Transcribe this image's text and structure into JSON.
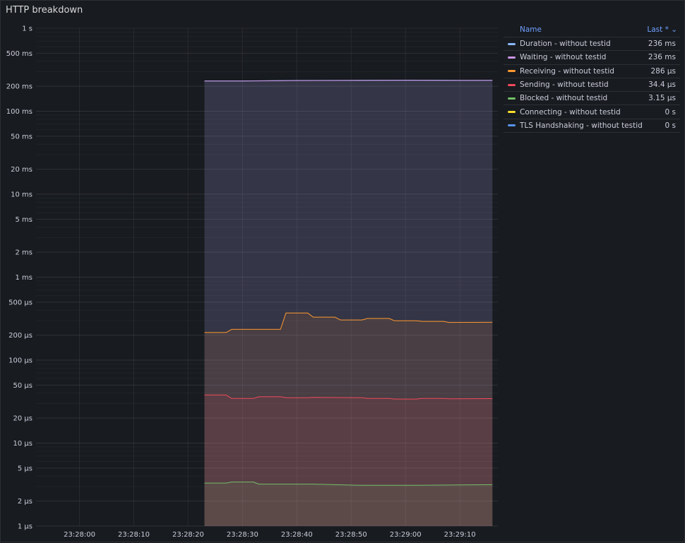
{
  "panel": {
    "title": "HTTP breakdown"
  },
  "legend": {
    "name_header": "Name",
    "last_header": "Last * ⌄",
    "rows": [
      {
        "name": "Duration - without testid",
        "value": "236 ms",
        "color": "#8ab8ff"
      },
      {
        "name": "Waiting - without testid",
        "value": "236 ms",
        "color": "#ca95e5"
      },
      {
        "name": "Receiving - without testid",
        "value": "286 µs",
        "color": "#ff9830"
      },
      {
        "name": "Sending - without testid",
        "value": "34.4 µs",
        "color": "#f2495c"
      },
      {
        "name": "Blocked - without testid",
        "value": "3.15 µs",
        "color": "#73bf69"
      },
      {
        "name": "Connecting - without testid",
        "value": "0 s",
        "color": "#fade2a"
      },
      {
        "name": "TLS Handshaking - without testid",
        "value": "0 s",
        "color": "#5794f2"
      }
    ]
  },
  "chart_data": {
    "type": "line",
    "title": "HTTP breakdown",
    "yscale": "log",
    "ylim_seconds": [
      1e-06,
      1
    ],
    "y_tick_labels": [
      "1 s",
      "500 ms",
      "200 ms",
      "100 ms",
      "50 ms",
      "20 ms",
      "10 ms",
      "5 ms",
      "2 ms",
      "1 ms",
      "500 µs",
      "200 µs",
      "100 µs",
      "50 µs",
      "20 µs",
      "10 µs",
      "5 µs",
      "2 µs",
      "1 µs"
    ],
    "y_tick_values": [
      1,
      0.5,
      0.2,
      0.1,
      0.05,
      0.02,
      0.01,
      0.005,
      0.002,
      0.001,
      0.0005,
      0.0002,
      0.0001,
      5e-05,
      2e-05,
      1e-05,
      5e-06,
      2e-06,
      1e-06
    ],
    "xlim": [
      "23:27:52",
      "23:29:17"
    ],
    "x_tick_labels": [
      "23:28:00",
      "23:28:10",
      "23:28:20",
      "23:28:30",
      "23:28:40",
      "23:28:50",
      "23:29:00",
      "23:29:10"
    ],
    "grid": true,
    "fill_opacity": 0.1,
    "legend_position": "right",
    "series": [
      {
        "name": "Duration - without testid",
        "color": "#8ab8ff",
        "points": [
          [
            "23:28:23",
            0.232
          ],
          [
            "23:28:30",
            0.232
          ],
          [
            "23:28:40",
            0.235
          ],
          [
            "23:28:50",
            0.236
          ],
          [
            "23:29:00",
            0.237
          ],
          [
            "23:29:10",
            0.236
          ],
          [
            "23:29:16",
            0.236
          ]
        ]
      },
      {
        "name": "Waiting - without testid",
        "color": "#ca95e5",
        "points": [
          [
            "23:28:23",
            0.231
          ],
          [
            "23:28:30",
            0.231
          ],
          [
            "23:28:40",
            0.234
          ],
          [
            "23:28:50",
            0.235
          ],
          [
            "23:29:00",
            0.236
          ],
          [
            "23:29:10",
            0.235
          ],
          [
            "23:29:16",
            0.236
          ]
        ]
      },
      {
        "name": "Receiving - without testid",
        "color": "#ff9830",
        "points": [
          [
            "23:28:23",
            0.000215
          ],
          [
            "23:28:27",
            0.000215
          ],
          [
            "23:28:28",
            0.000235
          ],
          [
            "23:28:37",
            0.000235
          ],
          [
            "23:28:38",
            0.00037
          ],
          [
            "23:28:42",
            0.00037
          ],
          [
            "23:28:43",
            0.00033
          ],
          [
            "23:28:47",
            0.00033
          ],
          [
            "23:28:48",
            0.000305
          ],
          [
            "23:28:52",
            0.000305
          ],
          [
            "23:28:53",
            0.000318
          ],
          [
            "23:28:57",
            0.000318
          ],
          [
            "23:28:58",
            0.000298
          ],
          [
            "23:29:02",
            0.000298
          ],
          [
            "23:29:03",
            0.000293
          ],
          [
            "23:29:07",
            0.000293
          ],
          [
            "23:29:08",
            0.000285
          ],
          [
            "23:29:16",
            0.000286
          ]
        ]
      },
      {
        "name": "Sending - without testid",
        "color": "#f2495c",
        "points": [
          [
            "23:28:23",
            3.8e-05
          ],
          [
            "23:28:27",
            3.8e-05
          ],
          [
            "23:28:28",
            3.45e-05
          ],
          [
            "23:28:32",
            3.45e-05
          ],
          [
            "23:28:33",
            3.62e-05
          ],
          [
            "23:28:37",
            3.62e-05
          ],
          [
            "23:28:38",
            3.52e-05
          ],
          [
            "23:28:42",
            3.52e-05
          ],
          [
            "23:28:43",
            3.55e-05
          ],
          [
            "23:28:52",
            3.52e-05
          ],
          [
            "23:28:53",
            3.45e-05
          ],
          [
            "23:28:57",
            3.45e-05
          ],
          [
            "23:28:58",
            3.4e-05
          ],
          [
            "23:29:02",
            3.4e-05
          ],
          [
            "23:29:03",
            3.45e-05
          ],
          [
            "23:29:07",
            3.45e-05
          ],
          [
            "23:29:08",
            3.42e-05
          ],
          [
            "23:29:16",
            3.44e-05
          ]
        ]
      },
      {
        "name": "Blocked - without testid",
        "color": "#73bf69",
        "points": [
          [
            "23:28:23",
            3.3e-06
          ],
          [
            "23:28:27",
            3.3e-06
          ],
          [
            "23:28:28",
            3.4e-06
          ],
          [
            "23:28:32",
            3.4e-06
          ],
          [
            "23:28:33",
            3.2e-06
          ],
          [
            "23:28:42",
            3.2e-06
          ],
          [
            "23:28:43",
            3.2e-06
          ],
          [
            "23:28:52",
            3.1e-06
          ],
          [
            "23:29:02",
            3.1e-06
          ],
          [
            "23:29:16",
            3.15e-06
          ]
        ]
      },
      {
        "name": "Connecting - without testid",
        "color": "#fade2a",
        "points": [
          [
            "23:28:23",
            0
          ],
          [
            "23:29:16",
            0
          ]
        ]
      },
      {
        "name": "TLS Handshaking - without testid",
        "color": "#5794f2",
        "points": [
          [
            "23:28:23",
            0
          ],
          [
            "23:29:16",
            0
          ]
        ]
      }
    ]
  }
}
